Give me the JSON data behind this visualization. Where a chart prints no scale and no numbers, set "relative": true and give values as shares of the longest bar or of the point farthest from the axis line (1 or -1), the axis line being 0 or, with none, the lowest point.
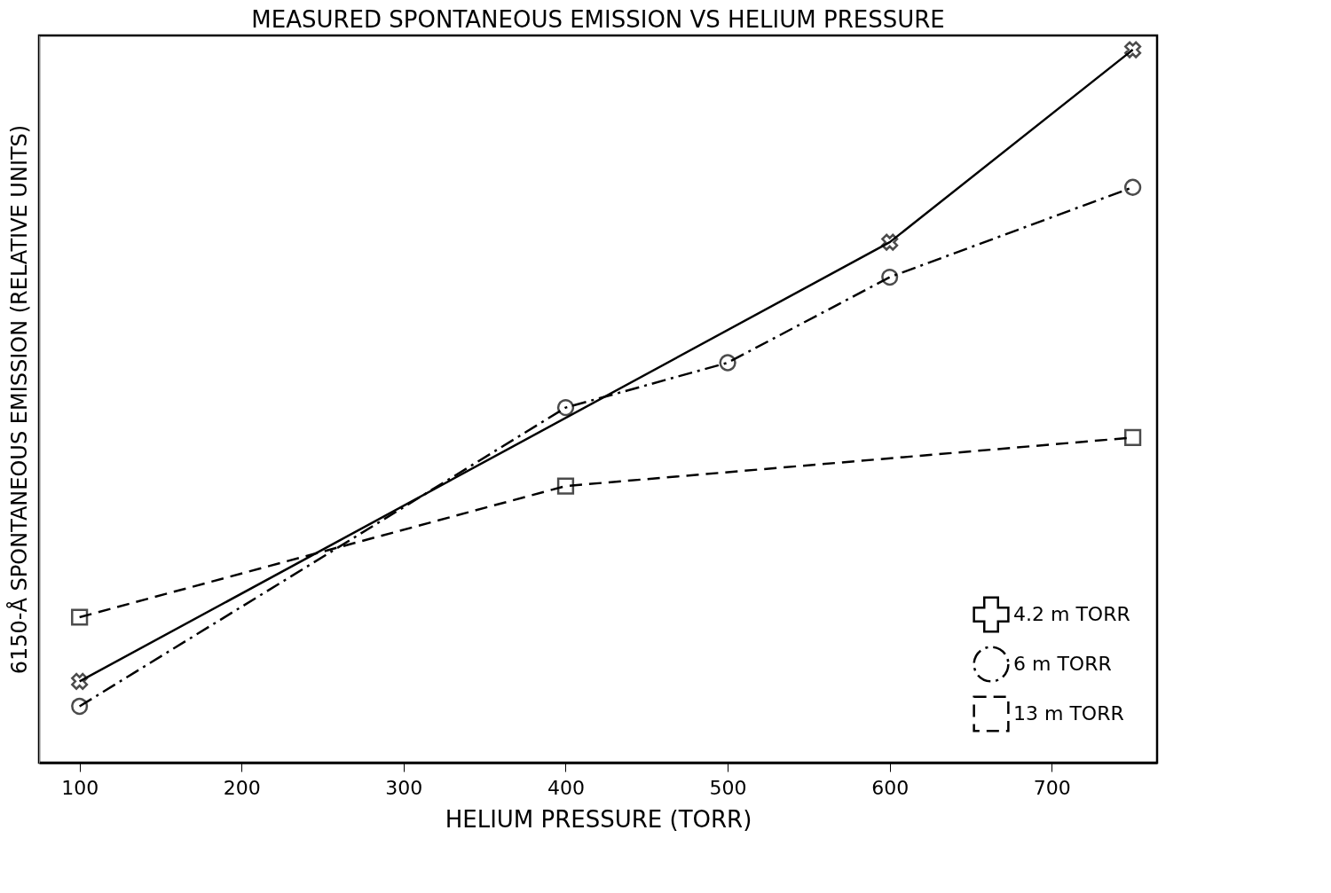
{
  "chart_data": {
    "type": "line",
    "title": "MEASURED SPONTANEOUS EMISSION VS HELIUM PRESSURE",
    "xlabel": "HELIUM PRESSURE (TORR)",
    "ylabel": "6150-Å SPONTANEOUS EMISSION (RELATIVE UNITS)",
    "relative": true,
    "x": [
      100,
      400,
      500,
      600,
      750
    ],
    "xlim": [
      75,
      765
    ],
    "xticks": [
      100,
      200,
      300,
      400,
      500,
      600,
      700
    ],
    "grid": false,
    "legend": "bottom right",
    "series": [
      {
        "name": "4.2 m TORR",
        "color": "#000000",
        "marker": "cross",
        "line_style": "solid",
        "values": [
          0.114,
          null,
          null,
          0.73,
          1.0
        ]
      },
      {
        "name": "6 m TORR",
        "color": "#000000",
        "marker": "circle",
        "line_style": "dashdot",
        "values": [
          0.079,
          0.498,
          0.561,
          0.681,
          0.807
        ]
      },
      {
        "name": "13 m TORR",
        "color": "#000000",
        "marker": "square",
        "line_style": "dashed",
        "values": [
          0.204,
          0.388,
          null,
          null,
          0.456
        ]
      }
    ]
  }
}
